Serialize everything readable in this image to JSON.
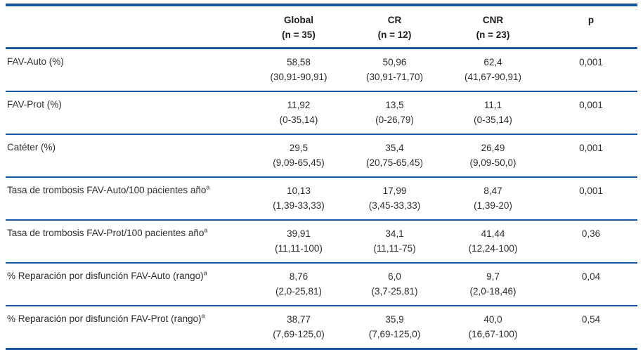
{
  "colors": {
    "rule_blue": "#1a55a3",
    "text": "#2e2e2e"
  },
  "table": {
    "header": {
      "label_column": "",
      "columns": [
        {
          "line1": "Global",
          "line2": "(n = 35)"
        },
        {
          "line1": "CR",
          "line2": "(n = 12)"
        },
        {
          "line1": "CNR",
          "line2": "(n = 23)"
        },
        {
          "line1": "p",
          "line2": ""
        }
      ]
    },
    "rows": [
      {
        "label": "FAV-Auto (%)",
        "sup": "",
        "global": {
          "value": "58,58",
          "range": "(30,91-90,91)"
        },
        "cr": {
          "value": "50,96",
          "range": "(30,91-71,70)"
        },
        "cnr": {
          "value": "62,4",
          "range": "(41,67-90,91)"
        },
        "p": "0,001"
      },
      {
        "label": "FAV-Prot (%)",
        "sup": "",
        "global": {
          "value": "11,92",
          "range": "(0-35,14)"
        },
        "cr": {
          "value": "13,5",
          "range": "(0-26,79)"
        },
        "cnr": {
          "value": "11,1",
          "range": "(0-35,14)"
        },
        "p": "0,001"
      },
      {
        "label": "Catéter (%)",
        "sup": "",
        "global": {
          "value": "29,5",
          "range": "(9,09-65,45)"
        },
        "cr": {
          "value": "35,4",
          "range": "(20,75-65,45)"
        },
        "cnr": {
          "value": "26,49",
          "range": "(9,09-50,0)"
        },
        "p": "0,001"
      },
      {
        "label": "Tasa de trombosis FAV-Auto/100 pacientes año",
        "sup": "a",
        "global": {
          "value": "10,13",
          "range": "(1,39-33,33)"
        },
        "cr": {
          "value": "17,99",
          "range": "(3,45-33,33)"
        },
        "cnr": {
          "value": "8,47",
          "range": "(1,39-20)"
        },
        "p": "0,001"
      },
      {
        "label": "Tasa de trombosis FAV-Prot/100 pacientes año",
        "sup": "a",
        "global": {
          "value": "39,91",
          "range": "(11,11-100)"
        },
        "cr": {
          "value": "34,1",
          "range": "(11,11-75)"
        },
        "cnr": {
          "value": "41,44",
          "range": "(12,24-100)"
        },
        "p": "0,36"
      },
      {
        "label": "% Reparación por disfunción FAV-Auto (rango)",
        "sup": "a",
        "global": {
          "value": "8,76",
          "range": "(2,0-25,81)"
        },
        "cr": {
          "value": "6,0",
          "range": "(3,7-25,81)"
        },
        "cnr": {
          "value": "9,7",
          "range": "(2,0-18,46)"
        },
        "p": "0,04"
      },
      {
        "label": "% Reparación por disfunción FAV-Prot (rango)",
        "sup": "a",
        "global": {
          "value": "38,77",
          "range": "(7,69-125,0)"
        },
        "cr": {
          "value": "35,9",
          "range": "(7,69-125,0)"
        },
        "cnr": {
          "value": "40,0",
          "range": "(16,67-100)"
        },
        "p": "0,54"
      }
    ]
  }
}
